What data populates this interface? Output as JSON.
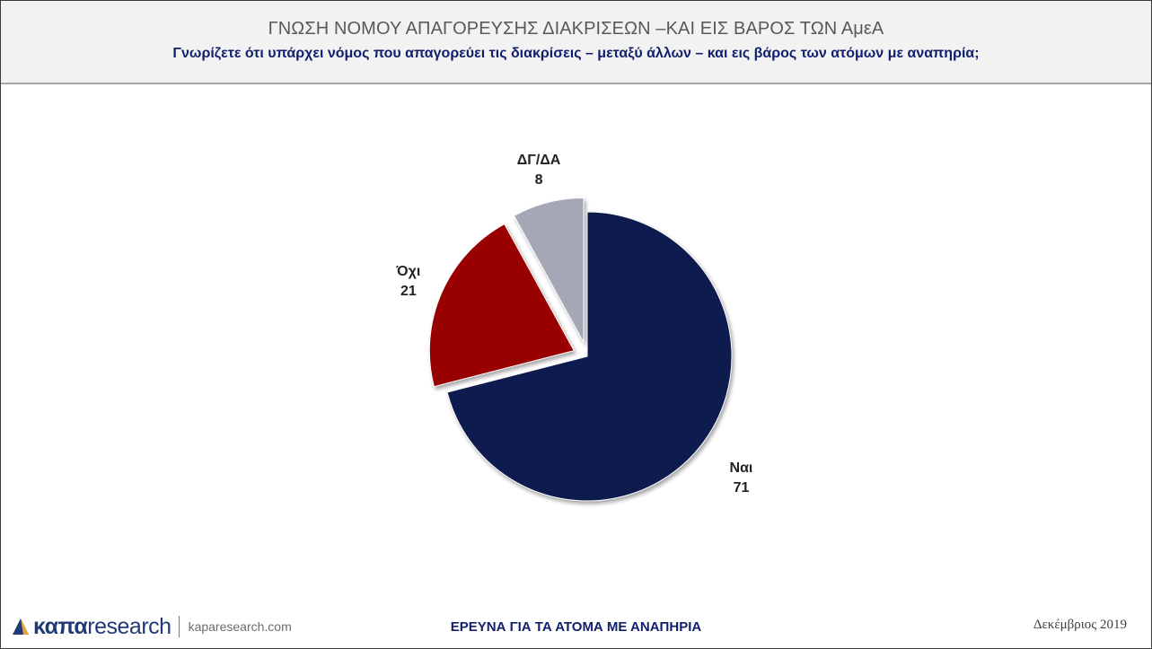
{
  "header": {
    "title": "ΓΝΩΣΗ ΝΟΜΟΥ ΑΠΑΓΟΡΕΥΣΗΣ ΔΙΑΚΡΙΣΕΩΝ –ΚΑΙ ΕΙΣ ΒΑΡΟΣ ΤΩΝ ΑμεΑ",
    "subtitle": "Γνωρίζετε ότι υπάρχει νόμος που απαγορεύει τις διακρίσεις – μεταξύ άλλων – και εις βάρος των ατόμων με αναπηρία;"
  },
  "chart_data": {
    "type": "pie",
    "title": "",
    "labels": [
      "Ναι",
      "Όχι",
      "ΔΓ/ΔΑ"
    ],
    "values": [
      71,
      21,
      8
    ],
    "colors": [
      "#0e1b4f",
      "#990000",
      "#a4a7b6"
    ],
    "exploded": [
      false,
      true,
      true
    ],
    "legend": "none",
    "data_labels": "outside"
  },
  "footer": {
    "logo_brand": "καπα",
    "logo_suffix": "research",
    "logo_url": "kaparesearch.com",
    "logo_icon": "kapa-logo-icon",
    "center_text": "ΕΡΕΥΝΑ ΓΙΑ ΤΑ ΑΤΟΜΑ ΜΕ ΑΝΑΠΗΡΙΑ",
    "date": "Δεκέμβριος 2019"
  }
}
